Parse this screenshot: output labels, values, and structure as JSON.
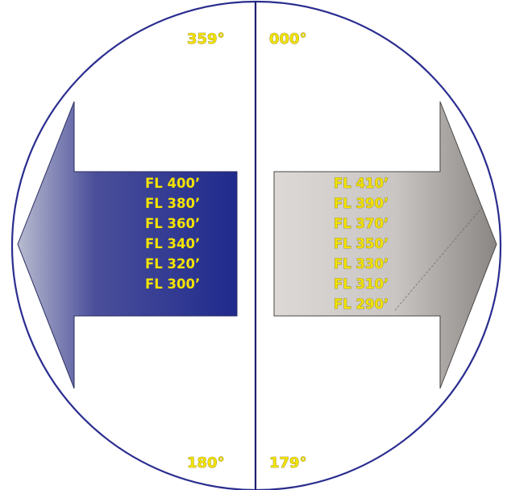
{
  "headings": {
    "top_left": "359°",
    "top_right": "000°",
    "bottom_left": "180°",
    "bottom_right": "179°"
  },
  "west": {
    "direction": "left",
    "color_from": "#1f2a8c",
    "color_to": "#b9bcd0",
    "levels": [
      "FL 400’",
      "FL 380’",
      "FL 360’",
      "FL 340’",
      "FL 320’",
      "FL 300’"
    ]
  },
  "east": {
    "direction": "right",
    "color_from": "#d9d6d4",
    "color_to": "#8a8684",
    "levels": [
      "FL 410’",
      "FL 390’",
      "FL 370’",
      "FL 350’",
      "FL 330’",
      "FL 310’",
      "FL 290’"
    ]
  },
  "colors": {
    "circle": "#2a2d8f",
    "divider": "#1e2070",
    "label_yellow": "#f2e300"
  }
}
